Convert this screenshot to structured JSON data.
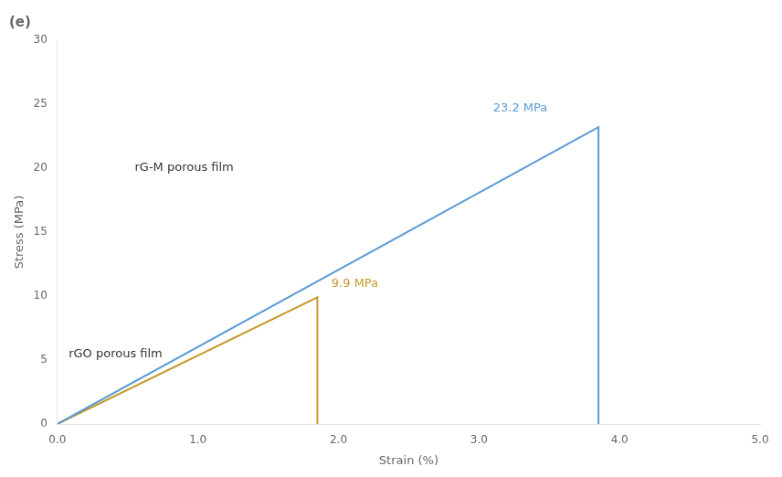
{
  "chart_data": {
    "type": "line",
    "title": "(e)",
    "x_label": "Strain (%)",
    "y_label": "Stress (MPa)",
    "series": [
      {
        "color": "#5b9bd5",
        "x": [
          0.0,
          3.85,
          3.85
        ],
        "values": [
          0.0,
          23.2,
          0.0
        ]
      },
      {
        "color": "#c49a2a",
        "x": [
          0.0,
          1.85,
          1.85
        ],
        "values": [
          0.0,
          9.9,
          0.0
        ]
      }
    ],
    "xlim": [
      0.0,
      5.0
    ],
    "ylim": [
      0,
      30
    ],
    "xticks": [
      {
        "value": 0.0,
        "label": "0.0"
      },
      {
        "value": 1.0,
        "label": "1.0"
      },
      {
        "value": 2.0,
        "label": "2.0"
      },
      {
        "value": 3.0,
        "label": "3.0"
      },
      {
        "value": 4.0,
        "label": "4.0"
      },
      {
        "value": 5.0,
        "label": "5.0"
      }
    ],
    "yticks": [
      0,
      5,
      10,
      15,
      20,
      25,
      30
    ],
    "grid": false,
    "annotations": [
      {
        "text": "23.2 MPa",
        "x": 3.1,
        "y": 24.4,
        "color": "#5b9bd5"
      },
      {
        "text": "9.9 MPa",
        "x": 1.95,
        "y": 10.7,
        "color": "#c49a2a"
      },
      {
        "text": "rG-M porous film",
        "x": 0.55,
        "y": 19.8,
        "color": "#333333"
      },
      {
        "text": "rGO porous film",
        "x": 0.08,
        "y": 5.2,
        "color": "#333333"
      }
    ]
  }
}
